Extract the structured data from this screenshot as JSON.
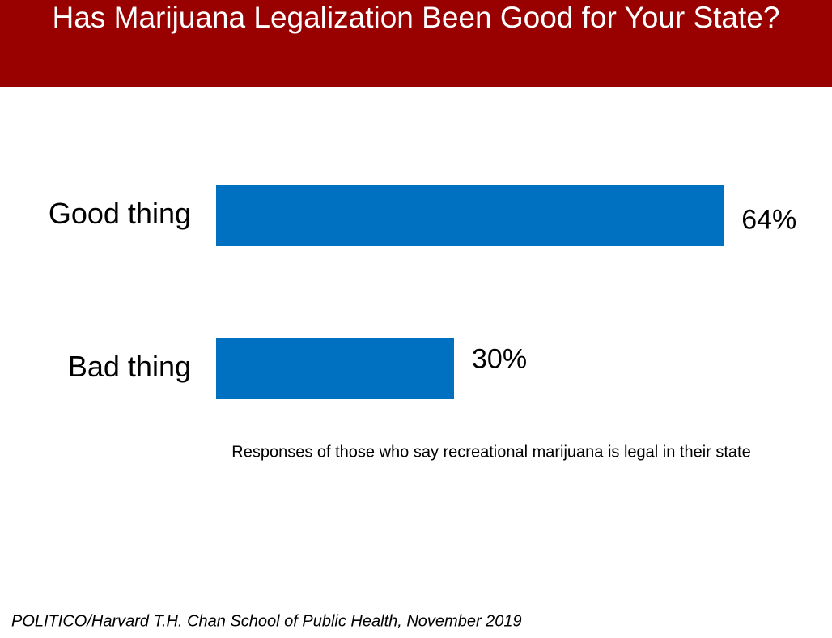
{
  "chart_data": {
    "type": "bar",
    "orientation": "horizontal",
    "title": "Has Marijuana Legalization Been Good for Your State?",
    "categories": [
      "Good thing",
      "Bad thing"
    ],
    "values": [
      64,
      30
    ],
    "value_labels": [
      "64%",
      "30%"
    ],
    "color": "#0070c0",
    "note": "Responses of those who say recreational marijuana is legal in their state",
    "source": "POLITICO/Harvard T.H. Chan School of Public Health, November 2019"
  }
}
